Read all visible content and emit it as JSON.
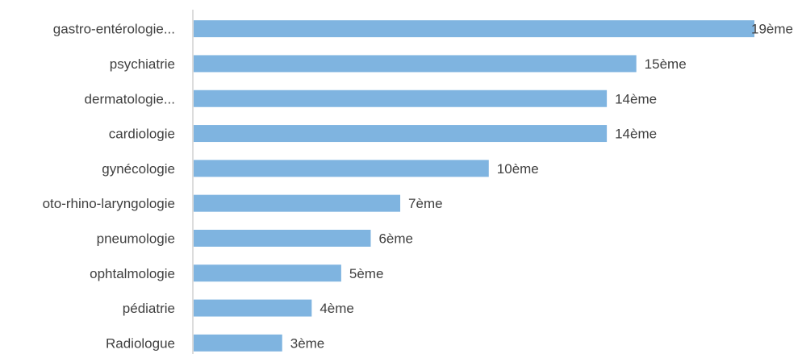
{
  "chart_data": {
    "type": "bar",
    "orientation": "horizontal",
    "categories": [
      "gastro-entérologie...",
      "psychiatrie",
      "dermatologie...",
      "cardiologie",
      "gynécologie",
      "oto-rhino-laryngologie",
      "pneumologie",
      "ophtalmologie",
      "pédiatrie",
      "Radiologue"
    ],
    "values": [
      19,
      15,
      14,
      14,
      10,
      7,
      6,
      5,
      4,
      3
    ],
    "data_labels": [
      "19ème",
      "15ème",
      "14ème",
      "14ème",
      "10ème",
      "7ème",
      "6ème",
      "5ème",
      "4ème",
      "3ème"
    ],
    "xlim": [
      0,
      19
    ],
    "grid": false,
    "legend": "none",
    "colors": {
      "bar": "#7fb4e0",
      "axis": "#d0d0d0",
      "text": "#404040"
    }
  }
}
